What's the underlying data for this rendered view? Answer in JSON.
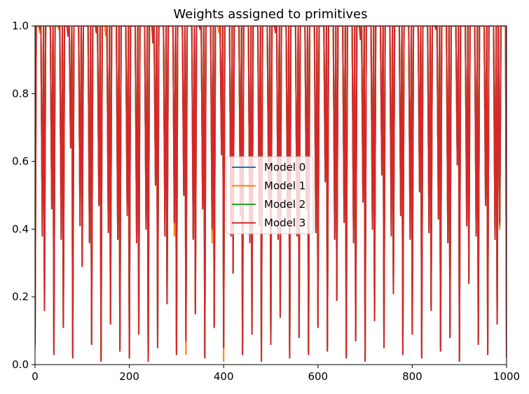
{
  "chart_data": {
    "type": "line",
    "title": "Weights assigned to primitives",
    "xlabel": "",
    "ylabel": "",
    "xlim": [
      0,
      1000
    ],
    "ylim": [
      0,
      1
    ],
    "xticks": [
      0,
      200,
      400,
      600,
      800,
      1000
    ],
    "yticks": [
      0.0,
      0.2,
      0.4,
      0.6,
      0.8,
      1.0
    ],
    "xtick_labels": [
      "0",
      "200",
      "400",
      "600",
      "800",
      "1000"
    ],
    "ytick_labels": [
      "0.0",
      "0.2",
      "0.4",
      "0.6",
      "0.8",
      "1.0"
    ],
    "grid": false,
    "legend_position": "center",
    "series_note_values": "Per-step weights oscillate rapidly between ~0 and 1 across 1000 steps; values below are representative samples (every 10th step).",
    "x_sample": [
      0,
      10,
      20,
      30,
      40,
      50,
      60,
      70,
      80,
      90,
      100,
      110,
      120,
      130,
      140,
      150,
      160,
      170,
      180,
      190,
      200,
      210,
      220,
      230,
      240,
      250,
      260,
      270,
      280,
      290,
      300,
      310,
      320,
      330,
      340,
      350,
      360,
      370,
      380,
      390,
      400,
      410,
      420,
      430,
      440,
      450,
      460,
      470,
      480,
      490,
      500,
      510,
      520,
      530,
      540,
      550,
      560,
      570,
      580,
      590,
      600,
      610,
      620,
      630,
      640,
      650,
      660,
      670,
      680,
      690,
      700,
      710,
      720,
      730,
      740,
      750,
      760,
      770,
      780,
      790,
      800,
      810,
      820,
      830,
      840,
      850,
      860,
      870,
      880,
      890,
      900,
      910,
      920,
      930,
      940,
      950,
      960,
      970,
      980,
      990,
      1000
    ],
    "series": [
      {
        "name": "Model 0",
        "color": "#1f77b4",
        "values": [
          0.07,
          1.0,
          0.16,
          1.0,
          0.03,
          1.0,
          0.11,
          0.97,
          0.02,
          1.0,
          0.29,
          1.0,
          0.06,
          0.98,
          0.01,
          1.0,
          0.12,
          1.0,
          0.04,
          1.0,
          0.02,
          1.0,
          0.09,
          1.0,
          0.01,
          0.95,
          0.05,
          1.0,
          0.18,
          1.0,
          0.03,
          1.0,
          0.07,
          1.0,
          0.15,
          0.99,
          0.02,
          1.0,
          0.11,
          1.0,
          0.05,
          1.0,
          0.27,
          1.0,
          0.03,
          1.0,
          0.09,
          1.0,
          0.01,
          1.0,
          0.06,
          0.98,
          0.14,
          1.0,
          0.02,
          1.0,
          0.08,
          1.0,
          0.03,
          1.0,
          0.11,
          1.0,
          0.04,
          1.0,
          0.19,
          1.0,
          0.02,
          1.0,
          0.07,
          0.96,
          0.01,
          1.0,
          0.13,
          1.0,
          0.05,
          1.0,
          0.21,
          1.0,
          0.03,
          1.0,
          0.09,
          1.0,
          0.02,
          1.0,
          0.16,
          0.99,
          0.04,
          1.0,
          0.08,
          1.0,
          0.01,
          1.0,
          0.24,
          1.0,
          0.06,
          1.0,
          0.03,
          1.0,
          0.12,
          1.0,
          0.02
        ]
      },
      {
        "name": "Model 1",
        "color": "#ff7f0e",
        "values": [
          0.05,
          0.98,
          0.22,
          1.0,
          0.06,
          0.99,
          0.14,
          1.0,
          0.12,
          1.0,
          0.31,
          1.0,
          0.09,
          1.0,
          0.04,
          0.97,
          0.16,
          1.0,
          0.07,
          1.0,
          0.05,
          1.0,
          0.12,
          1.0,
          0.02,
          0.99,
          0.08,
          1.0,
          0.21,
          1.0,
          0.06,
          1.0,
          0.03,
          1.0,
          0.18,
          1.0,
          0.05,
          1.0,
          0.14,
          0.98,
          0.01,
          1.0,
          0.3,
          1.0,
          0.06,
          1.0,
          0.12,
          1.0,
          0.02,
          1.0,
          0.09,
          1.0,
          0.17,
          1.0,
          0.05,
          1.0,
          0.11,
          1.0,
          0.06,
          1.0,
          0.14,
          1.0,
          0.07,
          1.0,
          0.22,
          1.0,
          0.05,
          1.0,
          0.1,
          0.99,
          0.04,
          1.0,
          0.16,
          1.0,
          0.08,
          1.0,
          0.24,
          1.0,
          0.06,
          1.0,
          0.12,
          1.0,
          0.05,
          1.0,
          0.19,
          1.0,
          0.07,
          1.0,
          0.11,
          1.0,
          0.04,
          1.0,
          0.27,
          1.0,
          0.09,
          1.0,
          0.06,
          1.0,
          0.15,
          1.0,
          0.05
        ]
      },
      {
        "name": "Model 2",
        "color": "#2ca02c",
        "values": [
          0.06,
          0.99,
          0.18,
          1.0,
          0.04,
          1.0,
          0.12,
          0.98,
          0.03,
          1.0,
          0.3,
          1.0,
          0.07,
          0.99,
          0.02,
          1.0,
          0.13,
          1.0,
          0.05,
          1.0,
          0.03,
          1.0,
          0.1,
          1.0,
          0.02,
          0.96,
          0.06,
          1.0,
          0.19,
          1.0,
          0.04,
          1.0,
          0.08,
          1.0,
          0.16,
          1.0,
          0.03,
          1.0,
          0.12,
          1.0,
          0.06,
          1.0,
          0.28,
          1.0,
          0.04,
          1.0,
          0.1,
          1.0,
          0.02,
          1.0,
          0.07,
          0.99,
          0.15,
          1.0,
          0.03,
          1.0,
          0.09,
          1.0,
          0.04,
          1.0,
          0.12,
          1.0,
          0.05,
          1.0,
          0.2,
          1.0,
          0.03,
          1.0,
          0.08,
          0.97,
          0.02,
          1.0,
          0.14,
          1.0,
          0.06,
          1.0,
          0.22,
          1.0,
          0.04,
          1.0,
          0.1,
          1.0,
          0.03,
          1.0,
          0.17,
          1.0,
          0.05,
          1.0,
          0.09,
          1.0,
          0.02,
          1.0,
          0.25,
          1.0,
          0.07,
          1.0,
          0.04,
          1.0,
          0.13,
          1.0,
          0.03
        ]
      },
      {
        "name": "Model 3",
        "color": "#d62728",
        "values": [
          0.07,
          1.0,
          0.16,
          1.0,
          0.03,
          1.0,
          0.11,
          0.97,
          0.02,
          1.0,
          0.29,
          1.0,
          0.06,
          0.98,
          0.01,
          1.0,
          0.12,
          1.0,
          0.04,
          1.0,
          0.02,
          1.0,
          0.09,
          1.0,
          0.01,
          0.95,
          0.05,
          1.0,
          0.18,
          1.0,
          0.03,
          1.0,
          0.07,
          1.0,
          0.15,
          0.99,
          0.02,
          1.0,
          0.11,
          1.0,
          0.05,
          1.0,
          0.27,
          1.0,
          0.03,
          1.0,
          0.09,
          1.0,
          0.01,
          1.0,
          0.06,
          0.98,
          0.14,
          1.0,
          0.02,
          1.0,
          0.08,
          1.0,
          0.03,
          1.0,
          0.11,
          1.0,
          0.04,
          1.0,
          0.19,
          1.0,
          0.02,
          1.0,
          0.07,
          0.96,
          0.01,
          1.0,
          0.13,
          1.0,
          0.05,
          1.0,
          0.21,
          1.0,
          0.03,
          1.0,
          0.09,
          1.0,
          0.02,
          1.0,
          0.16,
          0.99,
          0.04,
          1.0,
          0.08,
          1.0,
          0.01,
          1.0,
          0.24,
          1.0,
          0.06,
          1.0,
          0.03,
          1.0,
          0.12,
          1.0,
          0.02
        ]
      }
    ]
  }
}
